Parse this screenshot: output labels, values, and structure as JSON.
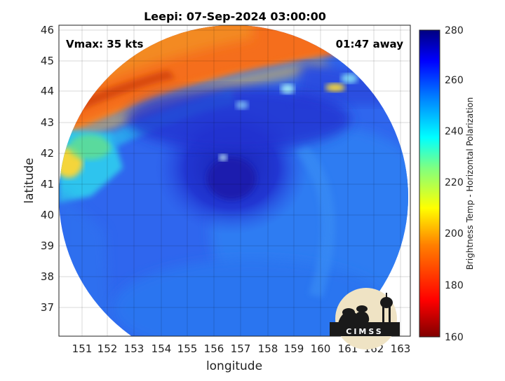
{
  "title": "Leepi: 07-Sep-2024 03:00:00",
  "vmax_label": "Vmax: 35 kts",
  "time_label": "01:47 away",
  "xlabel": "longitude",
  "ylabel": "latitude",
  "colorbar_label": "Brightness Temp - Horizontal Polarization",
  "logo_text": "CIMSS",
  "x_ticks": [
    "151",
    "152",
    "153",
    "154",
    "155",
    "156",
    "157",
    "158",
    "159",
    "160",
    "161",
    "162",
    "163"
  ],
  "y_ticks": [
    "37",
    "38",
    "39",
    "40",
    "41",
    "42",
    "43",
    "44",
    "45",
    "46"
  ],
  "colorbar_ticks": [
    "160",
    "180",
    "200",
    "220",
    "240",
    "260",
    "280"
  ],
  "colors": {
    "background_ring": "#ffffff",
    "deep_blue": "#1e2fc8",
    "mid_blue": "#2f6cf0",
    "cold_orange": "#f06a1a",
    "light_cyan": "#27c6ee"
  },
  "chart_data": {
    "type": "heatmap",
    "title": "Leepi: 07-Sep-2024 03:00:00",
    "xlabel": "longitude",
    "ylabel": "latitude",
    "xlim": [
      150.25,
      163.45
    ],
    "ylim": [
      36.05,
      46.15
    ],
    "colorbar": {
      "label": "Brightness Temp - Horizontal Polarization",
      "range": [
        160,
        280
      ],
      "colormap": "jet"
    },
    "grid": true,
    "annotations": [
      "Vmax: 35 kts",
      "01:47 away"
    ],
    "storm_center_approx": {
      "lon": 156.6,
      "lat": 41.3
    },
    "features": [
      {
        "name": "cold band",
        "value_range": [
          185,
          205
        ]
      },
      {
        "name": "storm core",
        "value_range": [
          262,
          275
        ]
      },
      {
        "name": "warm cyan patch",
        "value_range": [
          225,
          240
        ]
      }
    ]
  }
}
